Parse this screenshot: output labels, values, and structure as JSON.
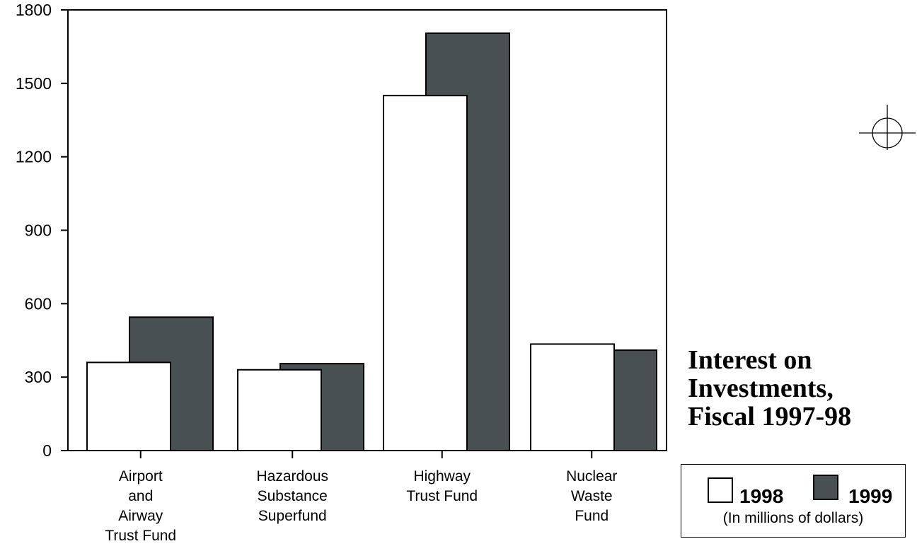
{
  "chart_data": {
    "type": "bar",
    "title": "Interest on Investments, Fiscal 1997-98",
    "title_lines": [
      "Interest on",
      "Investments,",
      "Fiscal 1997-98"
    ],
    "categories": [
      [
        "Airport",
        "and",
        "Airway",
        "Trust Fund"
      ],
      [
        "Hazardous",
        "Substance",
        "Superfund"
      ],
      [
        "Highway",
        "Trust Fund"
      ],
      [
        "Nuclear",
        "Waste",
        "Fund"
      ]
    ],
    "series": [
      {
        "name": "1998",
        "color": "#ffffff",
        "values": [
          360,
          330,
          1450,
          435
        ]
      },
      {
        "name": "1999",
        "color": "#495051",
        "values": [
          545,
          355,
          1705,
          410
        ]
      }
    ],
    "ylim": [
      0,
      1800
    ],
    "yticks": [
      "0",
      "300",
      "600",
      "900",
      "1200",
      "1500",
      "1800"
    ],
    "ylabel": "",
    "xlabel": "",
    "unit_note": "(In millions of dollars)",
    "legend_position": "bottom-right",
    "grid": false
  }
}
